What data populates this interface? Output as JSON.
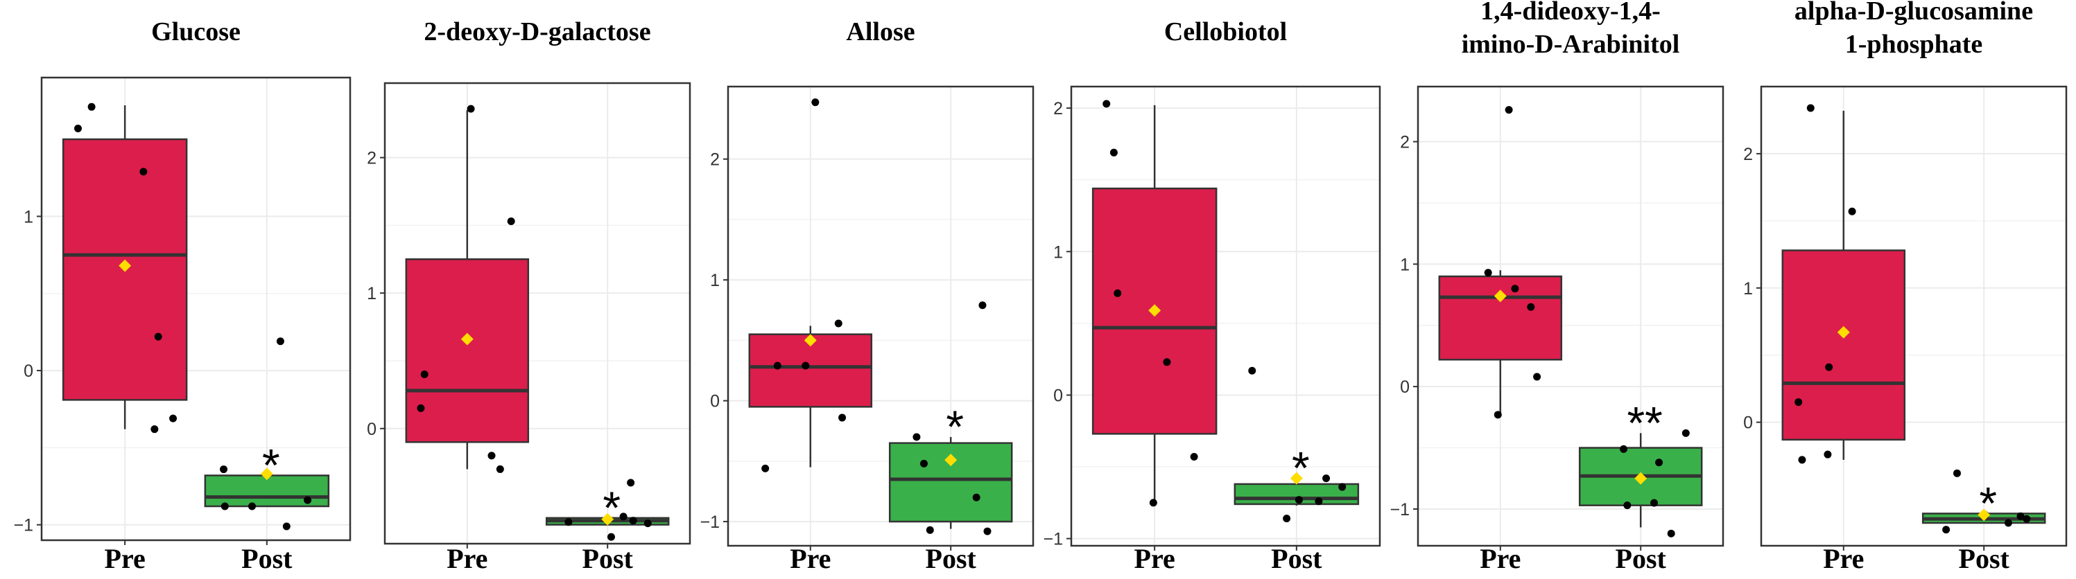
{
  "figure": {
    "description_colors": {
      "pre_fill": "#dc1e4c",
      "post_fill": "#3ab04a",
      "mean_marker": "#ffdd00",
      "point": "#000000",
      "grid": "#ebebeb",
      "frame": "#333333"
    }
  },
  "chart_data": [
    {
      "type": "box",
      "title_lines": [
        "Glucose"
      ],
      "categories": [
        "Pre",
        "Post"
      ],
      "ylim": [
        -1.1,
        1.9
      ],
      "yticks": [
        -1,
        0,
        1
      ],
      "ytick_labels": [
        "−1",
        "0",
        "1"
      ],
      "groups": [
        {
          "name": "Pre",
          "q1": -0.19,
          "median": 0.75,
          "q3": 1.5,
          "whisker_low": -0.38,
          "whisker_high": 1.72,
          "mean": 0.68,
          "points": [
            {
              "dx": -0.38,
              "y": 1.57
            },
            {
              "dx": -0.27,
              "y": 1.71
            },
            {
              "dx": 0.15,
              "y": 1.29
            },
            {
              "dx": 0.27,
              "y": 0.22
            },
            {
              "dx": 0.24,
              "y": -0.38
            },
            {
              "dx": 0.39,
              "y": -0.31
            }
          ]
        },
        {
          "name": "Post",
          "q1": -0.88,
          "median": -0.82,
          "q3": -0.68,
          "whisker_low": -0.88,
          "whisker_high": -0.68,
          "mean": -0.67,
          "points": [
            {
              "dx": -0.35,
              "y": -0.64
            },
            {
              "dx": -0.34,
              "y": -0.88
            },
            {
              "dx": -0.12,
              "y": -0.88
            },
            {
              "dx": 0.11,
              "y": 0.19
            },
            {
              "dx": 0.16,
              "y": -1.01
            },
            {
              "dx": 0.33,
              "y": -0.84
            }
          ]
        }
      ],
      "significance": {
        "group": "Post",
        "label": "*"
      }
    },
    {
      "type": "box",
      "title_lines": [
        "2-deoxy-D-galactose"
      ],
      "categories": [
        "Pre",
        "Post"
      ],
      "ylim": [
        -0.85,
        2.55
      ],
      "yticks": [
        0,
        1,
        2
      ],
      "ytick_labels": [
        "0",
        "1",
        "2"
      ],
      "groups": [
        {
          "name": "Pre",
          "q1": -0.1,
          "median": 0.28,
          "q3": 1.25,
          "whisker_low": -0.3,
          "whisker_high": 2.35,
          "mean": 0.66,
          "points": [
            {
              "dx": -0.38,
              "y": 0.15
            },
            {
              "dx": -0.35,
              "y": 0.4
            },
            {
              "dx": 0.03,
              "y": 2.36
            },
            {
              "dx": 0.2,
              "y": -0.2
            },
            {
              "dx": 0.27,
              "y": -0.3
            },
            {
              "dx": 0.36,
              "y": 1.53
            }
          ]
        },
        {
          "name": "Post",
          "q1": -0.71,
          "median": -0.68,
          "q3": -0.66,
          "whisker_low": -0.71,
          "whisker_high": -0.66,
          "mean": -0.67,
          "points": [
            {
              "dx": -0.32,
              "y": -0.69
            },
            {
              "dx": 0.03,
              "y": -0.8
            },
            {
              "dx": 0.13,
              "y": -0.65
            },
            {
              "dx": 0.19,
              "y": -0.4
            },
            {
              "dx": 0.21,
              "y": -0.68
            },
            {
              "dx": 0.33,
              "y": -0.7
            }
          ]
        }
      ],
      "significance": {
        "group": "Post",
        "label": "*"
      }
    },
    {
      "type": "box",
      "title_lines": [
        "Allose"
      ],
      "categories": [
        "Pre",
        "Post"
      ],
      "ylim": [
        -1.2,
        2.6
      ],
      "yticks": [
        -1,
        0,
        1,
        2
      ],
      "ytick_labels": [
        "−1",
        "0",
        "1",
        "2"
      ],
      "groups": [
        {
          "name": "Pre",
          "q1": -0.05,
          "median": 0.28,
          "q3": 0.55,
          "whisker_low": -0.55,
          "whisker_high": 0.62,
          "mean": 0.5,
          "points": [
            {
              "dx": -0.37,
              "y": -0.56
            },
            {
              "dx": -0.27,
              "y": 0.29
            },
            {
              "dx": -0.04,
              "y": 0.29
            },
            {
              "dx": 0.04,
              "y": 2.47
            },
            {
              "dx": 0.23,
              "y": 0.64
            },
            {
              "dx": 0.26,
              "y": -0.14
            }
          ]
        },
        {
          "name": "Post",
          "q1": -1.0,
          "median": -0.65,
          "q3": -0.35,
          "whisker_low": -1.06,
          "whisker_high": -0.3,
          "mean": -0.49,
          "points": [
            {
              "dx": -0.28,
              "y": -0.3
            },
            {
              "dx": -0.22,
              "y": -0.52
            },
            {
              "dx": -0.17,
              "y": -1.07
            },
            {
              "dx": 0.21,
              "y": -0.8
            },
            {
              "dx": 0.26,
              "y": 0.79
            },
            {
              "dx": 0.3,
              "y": -1.08
            }
          ]
        }
      ],
      "significance": {
        "group": "Post",
        "label": "*"
      }
    },
    {
      "type": "box",
      "title_lines": [
        "Cellobiotol"
      ],
      "categories": [
        "Pre",
        "Post"
      ],
      "ylim": [
        -1.05,
        2.15
      ],
      "yticks": [
        -1,
        0,
        1,
        2
      ],
      "ytick_labels": [
        "−1",
        "0",
        "1",
        "2"
      ],
      "groups": [
        {
          "name": "Pre",
          "q1": -0.27,
          "median": 0.47,
          "q3": 1.44,
          "whisker_low": -0.74,
          "whisker_high": 2.02,
          "mean": 0.59,
          "points": [
            {
              "dx": -0.39,
              "y": 2.03
            },
            {
              "dx": -0.33,
              "y": 1.69
            },
            {
              "dx": -0.3,
              "y": 0.71
            },
            {
              "dx": -0.01,
              "y": -0.75
            },
            {
              "dx": 0.1,
              "y": 0.23
            },
            {
              "dx": 0.32,
              "y": -0.43
            }
          ]
        },
        {
          "name": "Post",
          "q1": -0.76,
          "median": -0.72,
          "q3": -0.62,
          "whisker_low": -0.77,
          "whisker_high": -0.58,
          "mean": -0.58,
          "points": [
            {
              "dx": -0.36,
              "y": 0.17
            },
            {
              "dx": -0.08,
              "y": -0.86
            },
            {
              "dx": 0.02,
              "y": -0.73
            },
            {
              "dx": 0.18,
              "y": -0.74
            },
            {
              "dx": 0.24,
              "y": -0.58
            },
            {
              "dx": 0.37,
              "y": -0.64
            }
          ]
        }
      ],
      "significance": {
        "group": "Post",
        "label": "*"
      }
    },
    {
      "type": "box",
      "title_lines": [
        "1,4-dideoxy-1,4-",
        "imino-D-Arabinitol"
      ],
      "categories": [
        "Pre",
        "Post"
      ],
      "ylim": [
        -1.3,
        2.45
      ],
      "yticks": [
        -1,
        0,
        1,
        2
      ],
      "ytick_labels": [
        "−1",
        "0",
        "1",
        "2"
      ],
      "groups": [
        {
          "name": "Pre",
          "q1": 0.22,
          "median": 0.73,
          "q3": 0.9,
          "whisker_low": -0.23,
          "whisker_high": 0.95,
          "mean": 0.74,
          "points": [
            {
              "dx": -0.1,
              "y": 0.93
            },
            {
              "dx": 0.07,
              "y": 2.26
            },
            {
              "dx": 0.12,
              "y": 0.8
            },
            {
              "dx": -0.02,
              "y": -0.23
            },
            {
              "dx": 0.25,
              "y": 0.65
            },
            {
              "dx": 0.3,
              "y": 0.08
            }
          ]
        },
        {
          "name": "Post",
          "q1": -0.97,
          "median": -0.73,
          "q3": -0.5,
          "whisker_low": -1.15,
          "whisker_high": -0.38,
          "mean": -0.75,
          "points": [
            {
              "dx": -0.14,
              "y": -0.51
            },
            {
              "dx": -0.11,
              "y": -0.97
            },
            {
              "dx": 0.11,
              "y": -0.95
            },
            {
              "dx": 0.15,
              "y": -0.62
            },
            {
              "dx": 0.25,
              "y": -1.2
            },
            {
              "dx": 0.37,
              "y": -0.38
            }
          ]
        }
      ],
      "significance": {
        "group": "Post",
        "label": "**"
      }
    },
    {
      "type": "box",
      "title_lines": [
        "alpha-D-glucosamine",
        "1-phosphate"
      ],
      "categories": [
        "Pre",
        "Post"
      ],
      "ylim": [
        -0.92,
        2.5
      ],
      "yticks": [
        0,
        1,
        2
      ],
      "ytick_labels": [
        "0",
        "1",
        "2"
      ],
      "groups": [
        {
          "name": "Pre",
          "q1": -0.13,
          "median": 0.29,
          "q3": 1.28,
          "whisker_low": -0.28,
          "whisker_high": 2.32,
          "mean": 0.67,
          "points": [
            {
              "dx": -0.37,
              "y": 0.15
            },
            {
              "dx": -0.34,
              "y": -0.28
            },
            {
              "dx": -0.12,
              "y": 0.41
            },
            {
              "dx": -0.13,
              "y": -0.24
            },
            {
              "dx": -0.27,
              "y": 2.34
            },
            {
              "dx": 0.07,
              "y": 1.57
            }
          ]
        },
        {
          "name": "Post",
          "q1": -0.75,
          "median": -0.72,
          "q3": -0.68,
          "whisker_low": -0.75,
          "whisker_high": -0.68,
          "mean": -0.69,
          "points": [
            {
              "dx": -0.31,
              "y": -0.8
            },
            {
              "dx": -0.22,
              "y": -0.38
            },
            {
              "dx": 0.01,
              "y": -0.69
            },
            {
              "dx": 0.2,
              "y": -0.75
            },
            {
              "dx": 0.3,
              "y": -0.7
            },
            {
              "dx": 0.35,
              "y": -0.72
            }
          ]
        }
      ],
      "significance": {
        "group": "Post",
        "label": "*"
      }
    }
  ]
}
